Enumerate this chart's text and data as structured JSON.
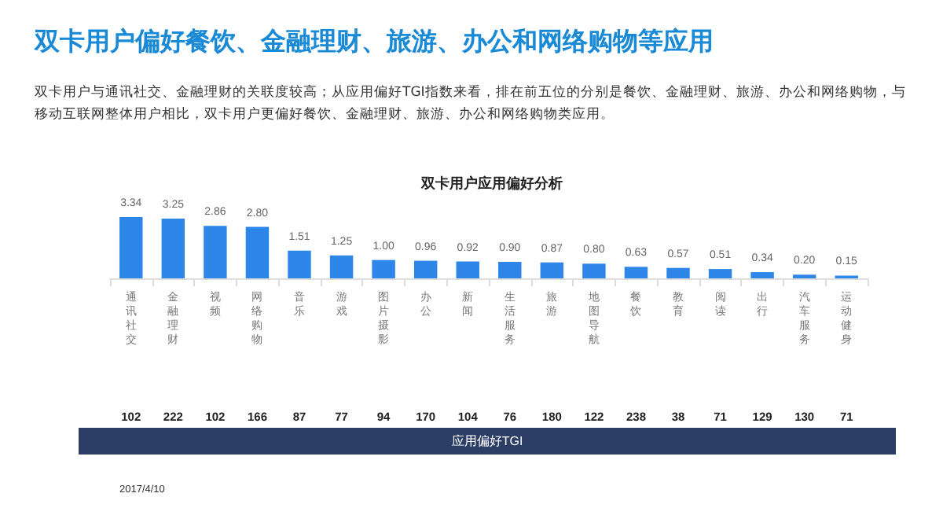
{
  "chart_data": {
    "type": "bar",
    "title": "双卡用户偏好餐饮、金融理财、旅游、办公和网络购物等应用",
    "subtitle": "双卡用户与通讯社交、金融理财的关联度较高；从应用偏好TGI指数来看，排在前五位的分别是餐饮、金融理财、旅游、办公和网络购物，与移动互联网整体用户相比，双卡用户更偏好餐饮、金融理财、旅游、办公和网络购物类应用。",
    "categories": [
      "通讯社交",
      "金融理财",
      "视频",
      "网络购物",
      "音乐",
      "游戏",
      "图片摄影",
      "办公",
      "新闻",
      "生活服务",
      "旅游",
      "地图导航",
      "餐饮",
      "教育",
      "阅读",
      "出行",
      "汽车服务",
      "运动健身"
    ],
    "values": [
      3.34,
      3.25,
      2.86,
      2.8,
      1.51,
      1.25,
      1.0,
      0.96,
      0.92,
      0.9,
      0.87,
      0.8,
      0.63,
      0.57,
      0.51,
      0.34,
      0.2,
      0.15
    ],
    "value_labels": [
      "3.34",
      "3.25",
      "2.86",
      "2.80",
      "1.51",
      "1.25",
      "1.00",
      "0.96",
      "0.92",
      "0.90",
      "0.87",
      "0.80",
      "0.63",
      "0.57",
      "0.51",
      "0.34",
      "0.20",
      "0.15"
    ],
    "color": "#2e86e8",
    "tick_labels": "x",
    "annotations": [
      "双卡用户应用偏好分析",
      "102",
      "222",
      "102",
      "166",
      "87",
      "77",
      "94",
      "170",
      "104",
      "76",
      "180",
      "122",
      "238",
      "38",
      "71",
      "129",
      "130",
      "71",
      "应用偏好TGI",
      "2017/4/10"
    ]
  }
}
